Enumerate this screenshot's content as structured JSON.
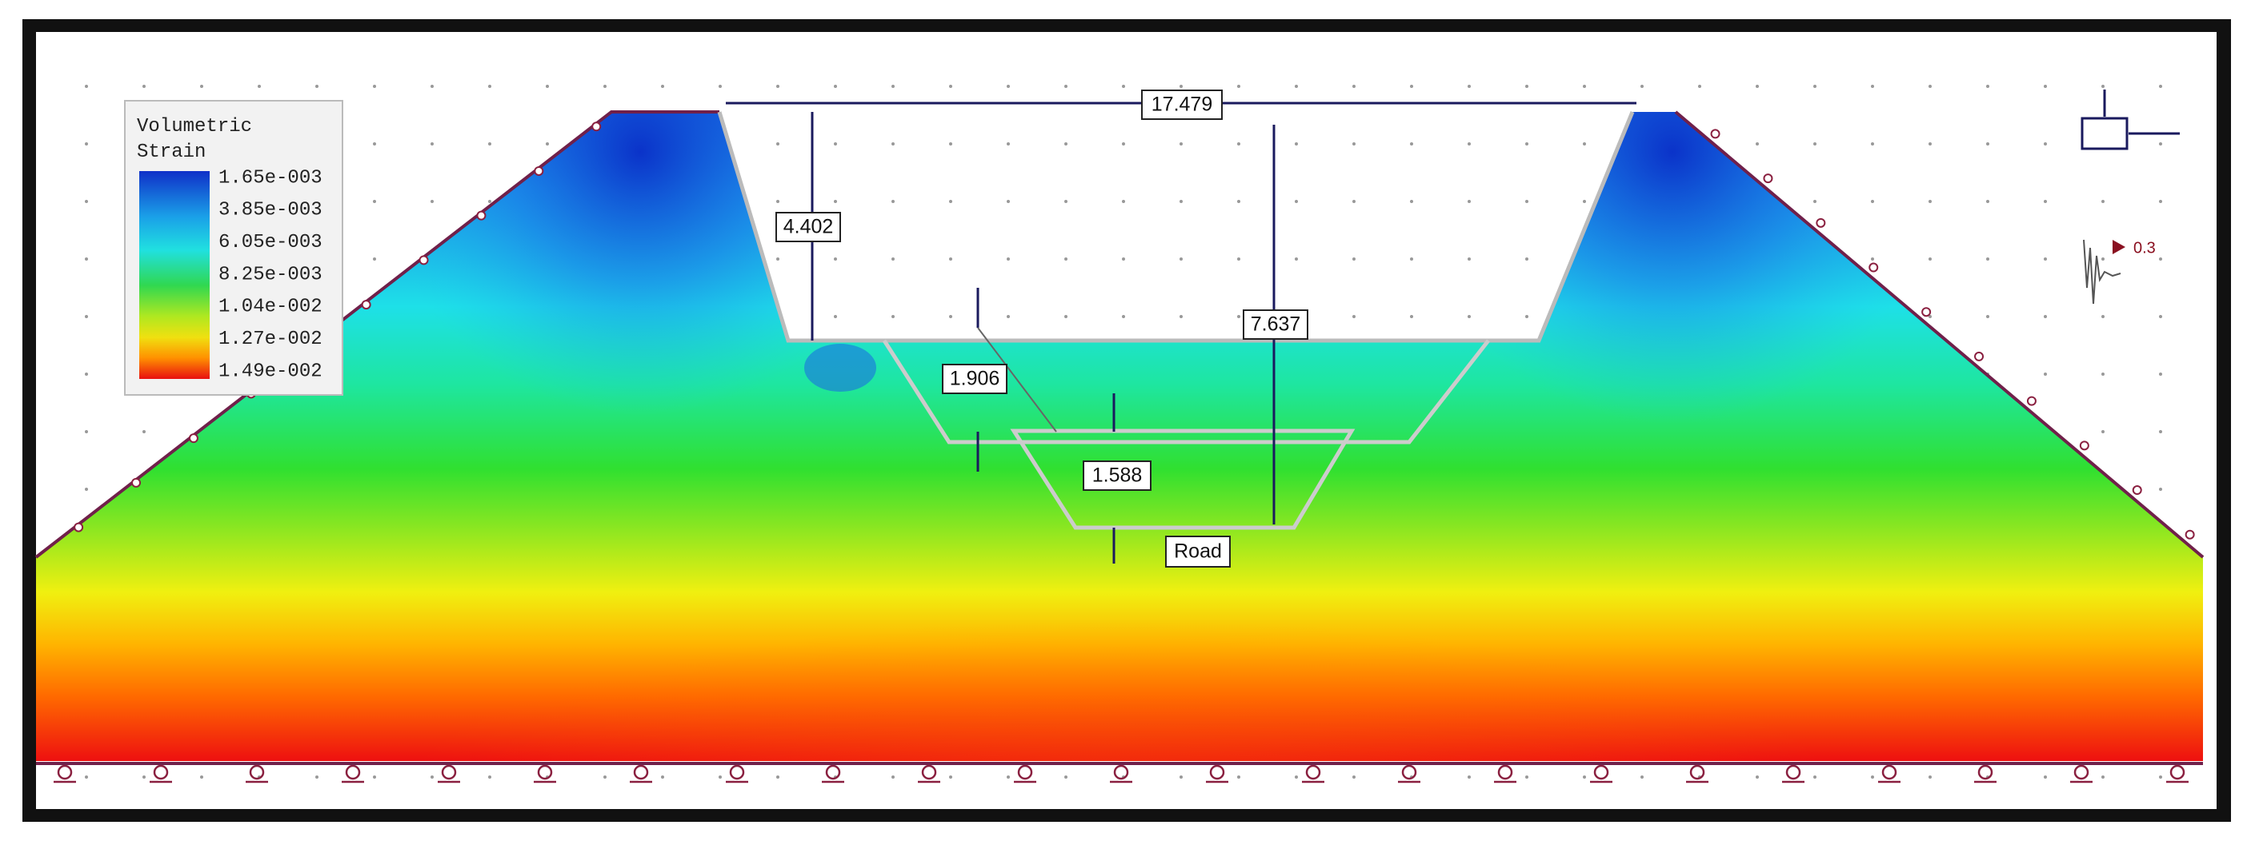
{
  "legend": {
    "title": [
      "Volumetric",
      "Strain"
    ],
    "labels": [
      "1.65e-003",
      "3.85e-003",
      "6.05e-003",
      "8.25e-003",
      "1.04e-002",
      "1.27e-002",
      "1.49e-002"
    ]
  },
  "dimensions": {
    "top_width": "17.479",
    "cut_depth": "4.402",
    "total_depth": "7.637",
    "upper_trench_depth": "1.906",
    "road_depth": "1.588"
  },
  "annotations": {
    "road": "Road",
    "seismic": "0.3"
  }
}
